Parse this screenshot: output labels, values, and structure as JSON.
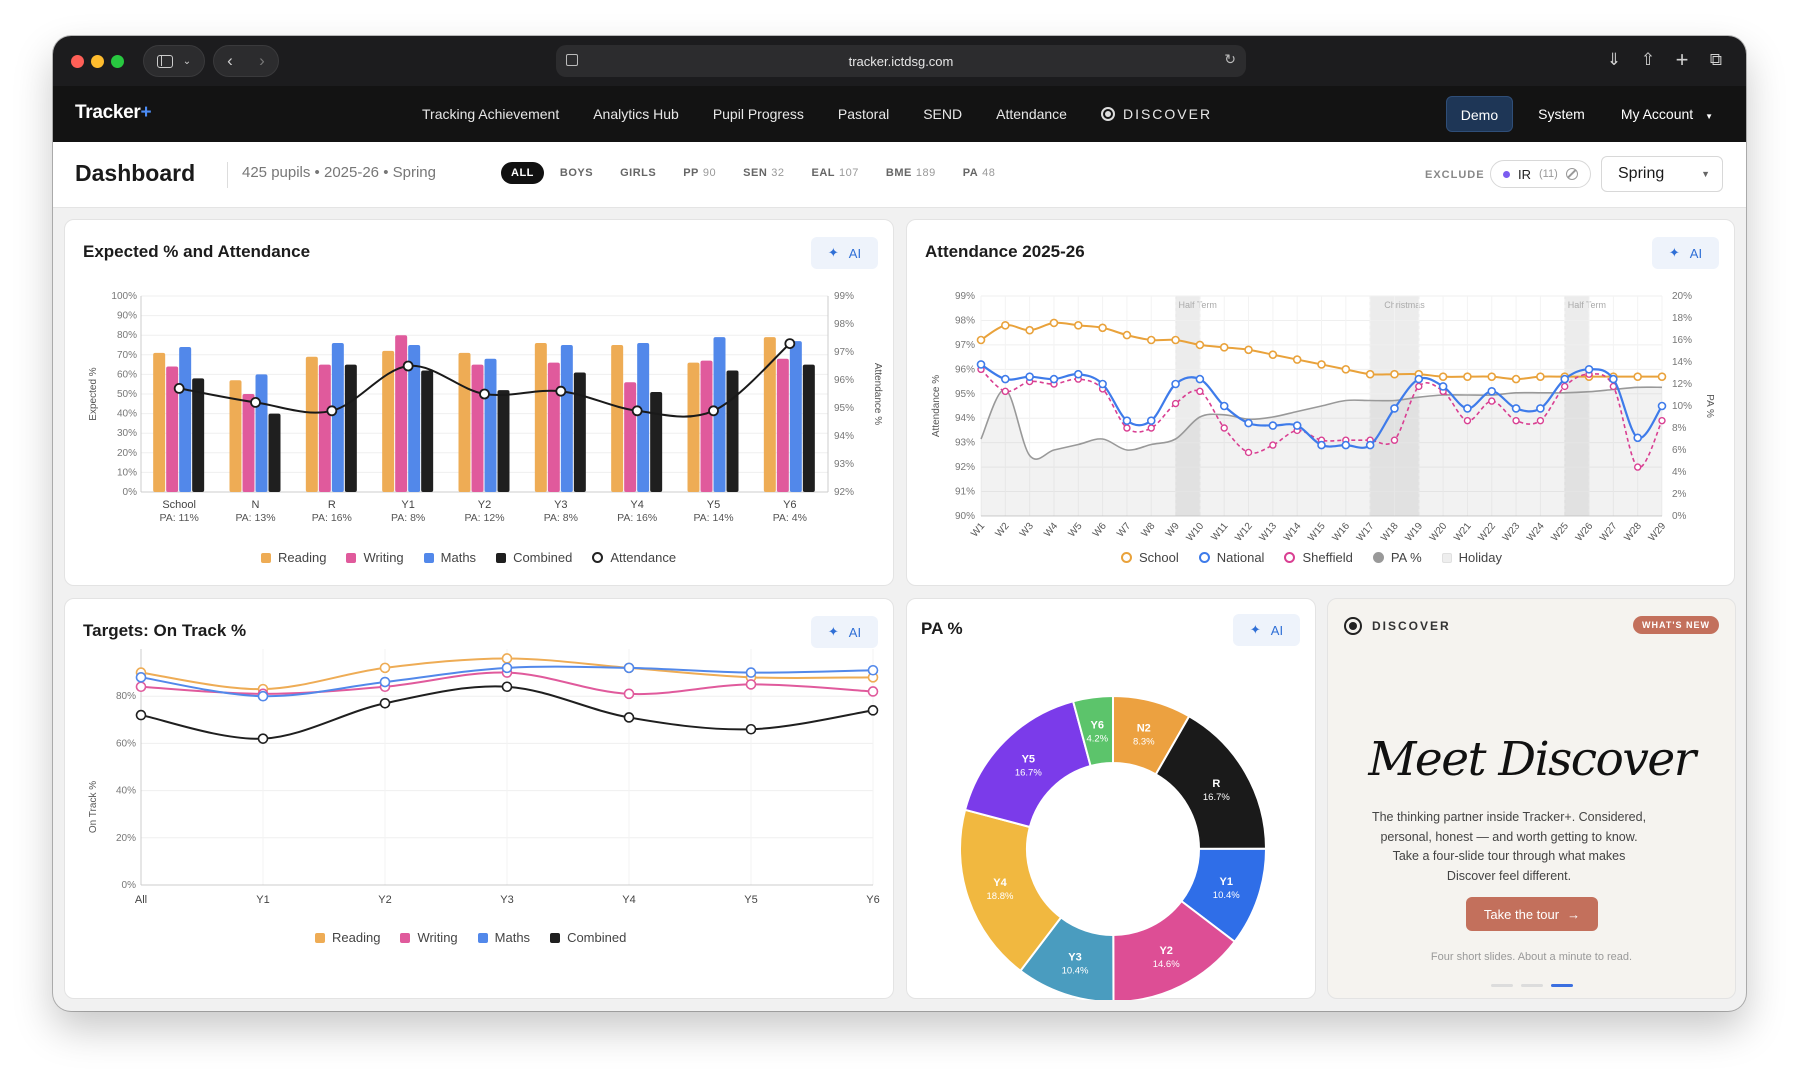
{
  "browser": {
    "url": "tracker.ictdsg.com"
  },
  "nav": {
    "brand": "Tracker",
    "brand_plus": "+",
    "items": [
      "Tracking Achievement",
      "Analytics Hub",
      "Pupil Progress",
      "Pastoral",
      "SEND",
      "Attendance"
    ],
    "discover": "DISCOVER",
    "demo": "Demo",
    "system": "System",
    "account": "My Account"
  },
  "subbar": {
    "title": "Dashboard",
    "subtitle": "425 pupils • 2025-26 • Spring",
    "filters": [
      {
        "label": "ALL",
        "count": ""
      },
      {
        "label": "BOYS",
        "count": ""
      },
      {
        "label": "GIRLS",
        "count": ""
      },
      {
        "label": "PP",
        "count": "90"
      },
      {
        "label": "SEN",
        "count": "32"
      },
      {
        "label": "EAL",
        "count": "107"
      },
      {
        "label": "BME",
        "count": "189"
      },
      {
        "label": "PA",
        "count": "48"
      }
    ],
    "exclude_label": "EXCLUDE",
    "exclude_pill": {
      "label": "IR",
      "count": "(11)"
    },
    "season": "Spring"
  },
  "ai_label": "AI",
  "colors": {
    "reading": "#eeac55",
    "writing": "#e05a9c",
    "maths": "#5288ea",
    "combined": "#1f1f1f",
    "school": "#e9a23b",
    "national": "#3e7bea",
    "sheffield": "#d93f92",
    "pa": "#999999",
    "holiday": "#eeeeee"
  },
  "chart_data": [
    {
      "id": "expected",
      "type": "bar",
      "title": "Expected % and Attendance",
      "ylabel": "Expected %",
      "y2label": "Attendance %",
      "ylim": [
        0,
        100
      ],
      "y2lim": [
        92,
        99
      ],
      "yticks": [
        "0%",
        "10%",
        "20%",
        "30%",
        "40%",
        "50%",
        "60%",
        "70%",
        "80%",
        "90%",
        "100%"
      ],
      "y2ticks": [
        "92%",
        "93%",
        "94%",
        "95%",
        "96%",
        "97%",
        "98%",
        "99%"
      ],
      "categories": [
        "School",
        "N",
        "R",
        "Y1",
        "Y2",
        "Y3",
        "Y4",
        "Y5",
        "Y6"
      ],
      "sublabels": [
        "PA: 11%",
        "PA: 13%",
        "PA: 16%",
        "PA: 8%",
        "PA: 12%",
        "PA: 8%",
        "PA: 16%",
        "PA: 14%",
        "PA: 4%"
      ],
      "series": [
        {
          "name": "Reading",
          "values": [
            71,
            57,
            69,
            72,
            71,
            76,
            75,
            66,
            79
          ]
        },
        {
          "name": "Writing",
          "values": [
            64,
            50,
            65,
            80,
            65,
            66,
            56,
            67,
            68
          ]
        },
        {
          "name": "Maths",
          "values": [
            74,
            60,
            76,
            75,
            68,
            75,
            76,
            79,
            77
          ]
        },
        {
          "name": "Combined",
          "values": [
            58,
            40,
            65,
            62,
            52,
            61,
            51,
            62,
            65
          ]
        }
      ],
      "line": {
        "name": "Attendance",
        "values": [
          95.7,
          95.2,
          94.9,
          96.5,
          95.5,
          95.6,
          94.9,
          94.9,
          97.3
        ]
      }
    },
    {
      "id": "attendance",
      "type": "line",
      "title": "Attendance 2025-26",
      "ylabel": "Attendance %",
      "y2label": "PA %",
      "ylim": [
        90,
        99
      ],
      "y2lim": [
        0,
        20
      ],
      "yticks": [
        "90%",
        "91%",
        "92%",
        "93%",
        "94%",
        "95%",
        "96%",
        "97%",
        "98%",
        "99%"
      ],
      "y2ticks": [
        "0%",
        "2%",
        "4%",
        "6%",
        "8%",
        "10%",
        "12%",
        "14%",
        "16%",
        "18%",
        "20%"
      ],
      "x": [
        "W1",
        "W2",
        "W3",
        "W4",
        "W5",
        "W6",
        "W7",
        "W8",
        "W9",
        "W10",
        "W11",
        "W12",
        "W13",
        "W14",
        "W15",
        "W16",
        "W17",
        "W18",
        "W19",
        "W20",
        "W21",
        "W22",
        "W23",
        "W24",
        "W25",
        "W26",
        "W27",
        "W28",
        "W29"
      ],
      "holidays": [
        {
          "label": "Half Term",
          "from": 8,
          "to": 9
        },
        {
          "label": "Christmas",
          "from": 16,
          "to": 18
        },
        {
          "label": "Half Term",
          "from": 24,
          "to": 25
        }
      ],
      "series": [
        {
          "name": "School",
          "values": [
            97.2,
            97.8,
            97.6,
            97.9,
            97.8,
            97.7,
            97.4,
            97.2,
            97.2,
            97.0,
            96.9,
            96.8,
            96.6,
            96.4,
            96.2,
            96.0,
            95.8,
            95.8,
            95.8,
            95.7,
            95.7,
            95.7,
            95.6,
            95.7,
            95.7,
            95.7,
            95.7,
            95.7,
            95.7
          ]
        },
        {
          "name": "National",
          "values": [
            96.2,
            95.6,
            95.7,
            95.6,
            95.8,
            95.4,
            93.9,
            93.9,
            95.4,
            95.6,
            94.5,
            93.8,
            93.7,
            93.7,
            92.9,
            92.9,
            92.9,
            94.4,
            95.6,
            95.3,
            94.4,
            95.1,
            94.4,
            94.4,
            95.6,
            96.0,
            95.6,
            93.2,
            94.5
          ]
        },
        {
          "name": "Sheffield",
          "values": [
            96.0,
            95.1,
            95.5,
            95.4,
            95.6,
            95.2,
            93.6,
            93.6,
            94.6,
            95.1,
            93.6,
            92.6,
            92.9,
            93.5,
            93.1,
            93.1,
            93.1,
            93.1,
            95.3,
            95.1,
            93.9,
            94.7,
            93.9,
            93.9,
            95.3,
            95.8,
            95.3,
            92.0,
            93.9
          ]
        },
        {
          "name": "PA %",
          "axis": "y2",
          "values": [
            7.0,
            11.5,
            5.5,
            6.0,
            6.5,
            7.0,
            6.0,
            6.5,
            7.0,
            9.0,
            9.2,
            8.8,
            9.0,
            9.5,
            10.0,
            10.5,
            10.5,
            10.5,
            10.8,
            11.0,
            11.0,
            11.0,
            11.2,
            11.2,
            11.2,
            11.3,
            11.5,
            11.7,
            11.7
          ]
        },
        {
          "name": "Holiday"
        }
      ]
    },
    {
      "id": "targets",
      "type": "line",
      "title": "Targets: On Track %",
      "ylabel": "On Track %",
      "ylim": [
        0,
        100
      ],
      "yticks": [
        "0%",
        "20%",
        "40%",
        "60%",
        "80%"
      ],
      "x": [
        "All",
        "Y1",
        "Y2",
        "Y3",
        "Y4",
        "Y5",
        "Y6"
      ],
      "series": [
        {
          "name": "Reading",
          "values": [
            90,
            83,
            92,
            96,
            92,
            88,
            88
          ]
        },
        {
          "name": "Writing",
          "values": [
            84,
            81,
            84,
            90,
            81,
            85,
            82
          ]
        },
        {
          "name": "Maths",
          "values": [
            88,
            80,
            86,
            92,
            92,
            90,
            91
          ]
        },
        {
          "name": "Combined",
          "values": [
            72,
            62,
            77,
            84,
            71,
            66,
            74
          ]
        }
      ]
    },
    {
      "id": "pa",
      "type": "pie",
      "title": "PA %",
      "slices": [
        {
          "label": "N2",
          "value": 8.3,
          "text": "8.3%",
          "color": "#eca140"
        },
        {
          "label": "R",
          "value": 16.7,
          "text": "16.7%",
          "color": "#1a1a1a"
        },
        {
          "label": "Y1",
          "value": 10.4,
          "text": "10.4%",
          "color": "#2f6ee8"
        },
        {
          "label": "Y2",
          "value": 14.6,
          "text": "14.6%",
          "color": "#dd4e95"
        },
        {
          "label": "Y3",
          "value": 10.4,
          "text": "10.4%",
          "color": "#4a9cbf"
        },
        {
          "label": "Y4",
          "value": 18.8,
          "text": "18.8%",
          "color": "#f1b840"
        },
        {
          "label": "Y5",
          "value": 16.7,
          "text": "16.7%",
          "color": "#7b3bea"
        },
        {
          "label": "Y6",
          "value": 4.2,
          "text": "4.2%",
          "color": "#5cc46b"
        }
      ]
    }
  ],
  "discover": {
    "header": "DISCOVER",
    "badge": "WHAT'S NEW",
    "headline": "Meet Discover",
    "body": "The thinking partner inside Tracker+. Considered, personal, honest — and worth getting to know. Take a four-slide tour through what makes Discover feel different.",
    "cta": "Take the tour",
    "footnote": "Four short slides. About a minute to read."
  }
}
